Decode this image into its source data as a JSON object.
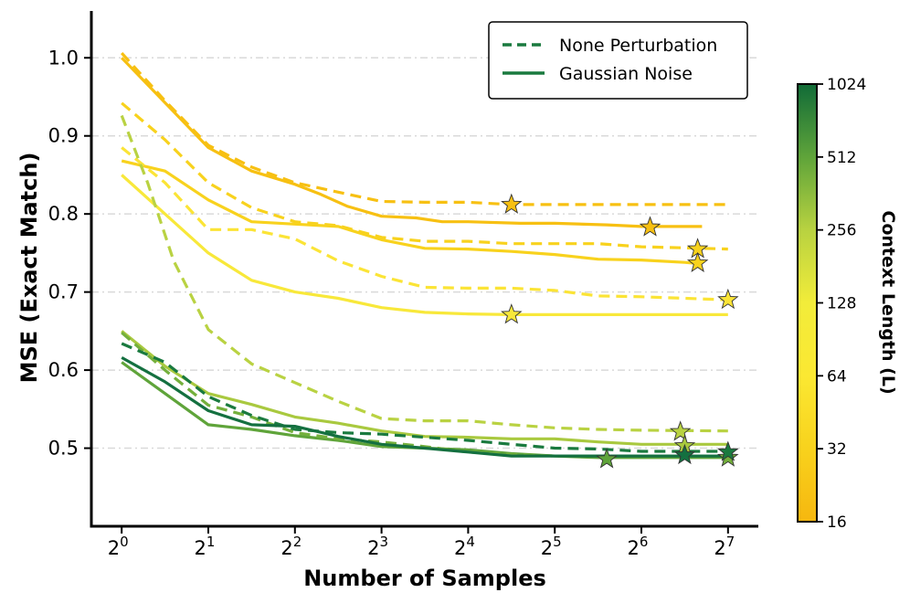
{
  "chart_data": {
    "type": "line",
    "xlabel": "Number of Samples",
    "ylabel": "MSE (Exact Match)",
    "x_scale": "log2",
    "xlim_exp": [
      -0.35,
      7.35
    ],
    "ylim": [
      0.4,
      1.06
    ],
    "x_ticks": [
      {
        "base": "2",
        "exp": "0",
        "value": 0
      },
      {
        "base": "2",
        "exp": "1",
        "value": 1
      },
      {
        "base": "2",
        "exp": "2",
        "value": 2
      },
      {
        "base": "2",
        "exp": "3",
        "value": 3
      },
      {
        "base": "2",
        "exp": "4",
        "value": 4
      },
      {
        "base": "2",
        "exp": "5",
        "value": 5
      },
      {
        "base": "2",
        "exp": "6",
        "value": 6
      },
      {
        "base": "2",
        "exp": "7",
        "value": 7
      }
    ],
    "y_ticks": [
      {
        "label": "0.5",
        "value": 0.5
      },
      {
        "label": "0.6",
        "value": 0.6
      },
      {
        "label": "0.7",
        "value": 0.7
      },
      {
        "label": "0.8",
        "value": 0.8
      },
      {
        "label": "0.9",
        "value": 0.9
      },
      {
        "label": "1.0",
        "value": 1.0
      }
    ],
    "grid": "horizontal dash-dot",
    "legend": {
      "position": "top-right",
      "entries": [
        {
          "label": "None Perturbation",
          "style": "dashed",
          "color": "#1a7a3f"
        },
        {
          "label": "Gaussian Noise",
          "style": "solid",
          "color": "#1a7a3f"
        }
      ]
    },
    "colorbar": {
      "title": "Context Length (L)",
      "ticks": [
        "16",
        "32",
        "64",
        "128",
        "256",
        "512",
        "1024"
      ],
      "stops": [
        "#f6b70f",
        "#f8d21d",
        "#fbe832",
        "#f2ec3a",
        "#b8d240",
        "#5fa43a",
        "#116b37"
      ]
    },
    "series": [
      {
        "name": "L=16 Gaussian Noise",
        "style": "solid",
        "color": "#f7c012",
        "points": [
          [
            0,
            1.0
          ],
          [
            1,
            0.885
          ],
          [
            1.5,
            0.855
          ],
          [
            2,
            0.838
          ],
          [
            2.3,
            0.825
          ],
          [
            2.6,
            0.81
          ],
          [
            3,
            0.797
          ],
          [
            3.4,
            0.795
          ],
          [
            3.7,
            0.79
          ],
          [
            4,
            0.79
          ],
          [
            4.6,
            0.788
          ],
          [
            5,
            0.788
          ],
          [
            5.6,
            0.786
          ],
          [
            6,
            0.784
          ],
          [
            6.7,
            0.784
          ]
        ],
        "star": [
          6.1,
          0.783
        ]
      },
      {
        "name": "L=16 None Perturbation",
        "style": "dashed",
        "color": "#f7c012",
        "points": [
          [
            0,
            1.006
          ],
          [
            0.5,
            0.945
          ],
          [
            1,
            0.888
          ],
          [
            1.5,
            0.86
          ],
          [
            2,
            0.84
          ],
          [
            2.5,
            0.828
          ],
          [
            3,
            0.816
          ],
          [
            3.5,
            0.815
          ],
          [
            4,
            0.815
          ],
          [
            4.5,
            0.812
          ],
          [
            5,
            0.812
          ],
          [
            5.5,
            0.812
          ],
          [
            6,
            0.812
          ],
          [
            7,
            0.812
          ]
        ],
        "star": [
          4.5,
          0.812
        ]
      },
      {
        "name": "L=32 None Perturbation",
        "style": "dashed",
        "color": "#f8d21d",
        "points": [
          [
            0,
            0.942
          ],
          [
            0.5,
            0.895
          ],
          [
            1,
            0.84
          ],
          [
            1.5,
            0.808
          ],
          [
            2,
            0.79
          ],
          [
            2.5,
            0.785
          ],
          [
            3,
            0.77
          ],
          [
            3.5,
            0.765
          ],
          [
            4,
            0.765
          ],
          [
            4.5,
            0.762
          ],
          [
            5,
            0.762
          ],
          [
            5.5,
            0.762
          ],
          [
            6,
            0.758
          ],
          [
            6.7,
            0.756
          ],
          [
            7,
            0.755
          ]
        ],
        "star": [
          6.65,
          0.755
        ]
      },
      {
        "name": "L=32 Gaussian Noise",
        "style": "solid",
        "color": "#f8d21d",
        "points": [
          [
            0,
            0.868
          ],
          [
            0.5,
            0.855
          ],
          [
            1,
            0.818
          ],
          [
            1.5,
            0.79
          ],
          [
            2,
            0.787
          ],
          [
            2.5,
            0.784
          ],
          [
            3,
            0.767
          ],
          [
            3.5,
            0.756
          ],
          [
            4,
            0.755
          ],
          [
            4.5,
            0.752
          ],
          [
            5,
            0.748
          ],
          [
            5.5,
            0.742
          ],
          [
            6,
            0.741
          ],
          [
            6.5,
            0.738
          ],
          [
            6.7,
            0.736
          ]
        ],
        "star": [
          6.65,
          0.737
        ]
      },
      {
        "name": "L=64 None Perturbation",
        "style": "dashed",
        "color": "#fbe436",
        "points": [
          [
            0,
            0.885
          ],
          [
            0.5,
            0.84
          ],
          [
            1,
            0.78
          ],
          [
            1.5,
            0.78
          ],
          [
            2,
            0.768
          ],
          [
            2.5,
            0.74
          ],
          [
            3,
            0.72
          ],
          [
            3.5,
            0.706
          ],
          [
            4,
            0.705
          ],
          [
            4.5,
            0.705
          ],
          [
            5,
            0.702
          ],
          [
            5.5,
            0.695
          ],
          [
            6,
            0.694
          ],
          [
            6.5,
            0.692
          ],
          [
            7,
            0.69
          ]
        ],
        "star": [
          7.0,
          0.69
        ]
      },
      {
        "name": "L=128 Gaussian Noise",
        "style": "solid",
        "color": "#f8e83a",
        "points": [
          [
            0,
            0.85
          ],
          [
            0.5,
            0.8
          ],
          [
            1,
            0.75
          ],
          [
            1.5,
            0.715
          ],
          [
            2,
            0.7
          ],
          [
            2.5,
            0.692
          ],
          [
            3,
            0.68
          ],
          [
            3.5,
            0.674
          ],
          [
            4,
            0.672
          ],
          [
            4.5,
            0.671
          ],
          [
            5,
            0.671
          ],
          [
            6,
            0.671
          ],
          [
            7,
            0.671
          ]
        ],
        "star": [
          4.5,
          0.671
        ]
      },
      {
        "name": "L=256 None Perturbation",
        "style": "dashed",
        "color": "#b9d242",
        "points": [
          [
            0,
            0.926
          ],
          [
            0.3,
            0.84
          ],
          [
            0.6,
            0.74
          ],
          [
            1,
            0.652
          ],
          [
            1.5,
            0.608
          ],
          [
            2,
            0.584
          ],
          [
            2.5,
            0.56
          ],
          [
            3,
            0.538
          ],
          [
            3.5,
            0.535
          ],
          [
            4,
            0.535
          ],
          [
            4.5,
            0.53
          ],
          [
            5,
            0.526
          ],
          [
            5.5,
            0.524
          ],
          [
            6,
            0.523
          ],
          [
            7,
            0.522
          ]
        ],
        "star": [
          6.45,
          0.521
        ]
      },
      {
        "name": "L=256 Gaussian Noise",
        "style": "solid",
        "color": "#a9c93f",
        "points": [
          [
            0,
            0.65
          ],
          [
            0.5,
            0.605
          ],
          [
            1,
            0.57
          ],
          [
            1.5,
            0.556
          ],
          [
            2,
            0.54
          ],
          [
            2.5,
            0.532
          ],
          [
            3,
            0.522
          ],
          [
            3.5,
            0.515
          ],
          [
            4,
            0.514
          ],
          [
            4.5,
            0.512
          ],
          [
            5,
            0.512
          ],
          [
            5.5,
            0.508
          ],
          [
            6,
            0.505
          ],
          [
            7,
            0.505
          ]
        ],
        "star": [
          6.5,
          0.503
        ]
      },
      {
        "name": "L=512 Gaussian Noise",
        "style": "solid",
        "color": "#5fa43a",
        "points": [
          [
            0,
            0.61
          ],
          [
            0.5,
            0.57
          ],
          [
            1,
            0.53
          ],
          [
            1.5,
            0.524
          ],
          [
            2,
            0.516
          ],
          [
            2.5,
            0.51
          ],
          [
            3,
            0.502
          ],
          [
            3.5,
            0.5
          ],
          [
            4,
            0.498
          ],
          [
            4.5,
            0.493
          ],
          [
            5,
            0.49
          ],
          [
            5.5,
            0.488
          ],
          [
            6,
            0.488
          ],
          [
            7,
            0.488
          ]
        ],
        "star": [
          5.6,
          0.486
        ]
      },
      {
        "name": "L=512 None Perturbation",
        "style": "dashed",
        "color": "#74b03c",
        "points": [
          [
            0,
            0.648
          ],
          [
            0.5,
            0.6
          ],
          [
            1,
            0.555
          ],
          [
            1.5,
            0.54
          ],
          [
            2,
            0.52
          ],
          [
            2.5,
            0.512
          ],
          [
            3,
            0.508
          ],
          [
            3.5,
            0.502
          ],
          [
            4,
            0.495
          ],
          [
            4.5,
            0.492
          ],
          [
            5,
            0.49
          ],
          [
            5.5,
            0.49
          ],
          [
            6,
            0.49
          ],
          [
            7,
            0.49
          ]
        ],
        "star": [
          7.0,
          0.488
        ]
      },
      {
        "name": "L=1024 None Perturbation",
        "style": "dashed",
        "color": "#1a7a3f",
        "points": [
          [
            0,
            0.634
          ],
          [
            0.5,
            0.61
          ],
          [
            1,
            0.566
          ],
          [
            1.5,
            0.542
          ],
          [
            2,
            0.524
          ],
          [
            2.5,
            0.52
          ],
          [
            3,
            0.518
          ],
          [
            3.5,
            0.514
          ],
          [
            4,
            0.51
          ],
          [
            4.5,
            0.505
          ],
          [
            5,
            0.5
          ],
          [
            5.5,
            0.499
          ],
          [
            6,
            0.496
          ],
          [
            7,
            0.496
          ]
        ],
        "star": [
          7.0,
          0.495
        ]
      },
      {
        "name": "L=1024 Gaussian Noise",
        "style": "solid",
        "color": "#147040",
        "points": [
          [
            0,
            0.616
          ],
          [
            0.5,
            0.585
          ],
          [
            1,
            0.548
          ],
          [
            1.5,
            0.53
          ],
          [
            2,
            0.528
          ],
          [
            2.5,
            0.515
          ],
          [
            3,
            0.505
          ],
          [
            3.5,
            0.5
          ],
          [
            4,
            0.495
          ],
          [
            4.5,
            0.49
          ],
          [
            5,
            0.49
          ],
          [
            5.5,
            0.49
          ],
          [
            6,
            0.49
          ],
          [
            7,
            0.49
          ]
        ],
        "star": [
          6.5,
          0.491
        ]
      }
    ]
  }
}
